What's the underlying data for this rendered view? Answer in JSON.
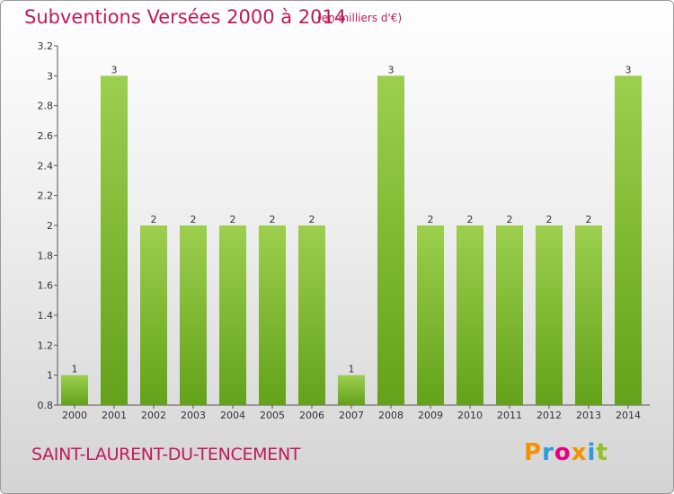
{
  "header": {
    "title": "Subventions Versées 2000 à 2014",
    "unit_note": "(en milliers d'€)"
  },
  "footer": {
    "commune_name": "SAINT-LAURENT-DU-TENCEMENT",
    "logo_text": "Proxiti"
  },
  "colors": {
    "bar_light": "#9ccf4e",
    "bar_dark": "#63a21a",
    "title": "#c2185b"
  },
  "chart_data": {
    "type": "bar",
    "title": "Subventions Versées 2000 à 2014",
    "subtitle": "(en milliers d'€)",
    "xlabel": "",
    "ylabel": "",
    "categories": [
      "2000",
      "2001",
      "2002",
      "2003",
      "2004",
      "2005",
      "2006",
      "2007",
      "2008",
      "2009",
      "2010",
      "2011",
      "2012",
      "2013",
      "2014"
    ],
    "values": [
      1,
      3,
      2,
      2,
      2,
      2,
      2,
      1,
      3,
      2,
      2,
      2,
      2,
      2,
      3
    ],
    "data_labels": [
      "1",
      "3",
      "2",
      "2",
      "2",
      "2",
      "2",
      "1",
      "3",
      "2",
      "2",
      "2",
      "2",
      "2",
      "3"
    ],
    "ylim": [
      0.8,
      3.2
    ],
    "yticks": [
      0.8,
      1,
      1.2,
      1.4,
      1.6,
      1.8,
      2,
      2.2,
      2.4,
      2.6,
      2.8,
      3,
      3.2
    ],
    "ytick_labels": [
      "0.8",
      "1",
      "1.2",
      "1.4",
      "1.6",
      "1.8",
      "2",
      "2.2",
      "2.4",
      "2.6",
      "2.8",
      "3",
      "3.2"
    ],
    "grid": false,
    "legend": "none"
  }
}
